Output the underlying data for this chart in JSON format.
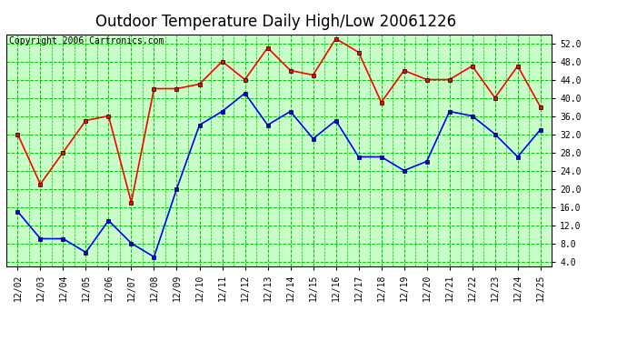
{
  "title": "Outdoor Temperature Daily High/Low 20061226",
  "copyright": "Copyright 2006 Cartronics.com",
  "dates": [
    "12/02",
    "12/03",
    "12/04",
    "12/05",
    "12/06",
    "12/07",
    "12/08",
    "12/09",
    "12/10",
    "12/11",
    "12/12",
    "12/13",
    "12/14",
    "12/15",
    "12/16",
    "12/17",
    "12/18",
    "12/19",
    "12/20",
    "12/21",
    "12/22",
    "12/23",
    "12/24",
    "12/25"
  ],
  "high_temps": [
    32,
    21,
    28,
    35,
    36,
    17,
    42,
    42,
    43,
    48,
    44,
    51,
    46,
    45,
    53,
    50,
    39,
    46,
    44,
    44,
    47,
    40,
    47,
    38
  ],
  "low_temps": [
    15,
    9,
    9,
    6,
    13,
    8,
    5,
    20,
    34,
    37,
    41,
    34,
    37,
    31,
    35,
    27,
    27,
    24,
    26,
    37,
    36,
    32,
    27,
    33
  ],
  "high_color": "#ff0000",
  "low_color": "#0000ff",
  "marker_color": "#000000",
  "plot_bg": "#c8ffc8",
  "outer_bg": "#ffffff",
  "grid_color": "#00cc00",
  "ylim": [
    3.0,
    54.0
  ],
  "yticks": [
    4.0,
    8.0,
    12.0,
    16.0,
    20.0,
    24.0,
    28.0,
    32.0,
    36.0,
    40.0,
    44.0,
    48.0,
    52.0
  ],
  "title_fontsize": 12,
  "copyright_fontsize": 7,
  "tick_fontsize": 7,
  "line_width": 1.2,
  "marker_size": 3
}
